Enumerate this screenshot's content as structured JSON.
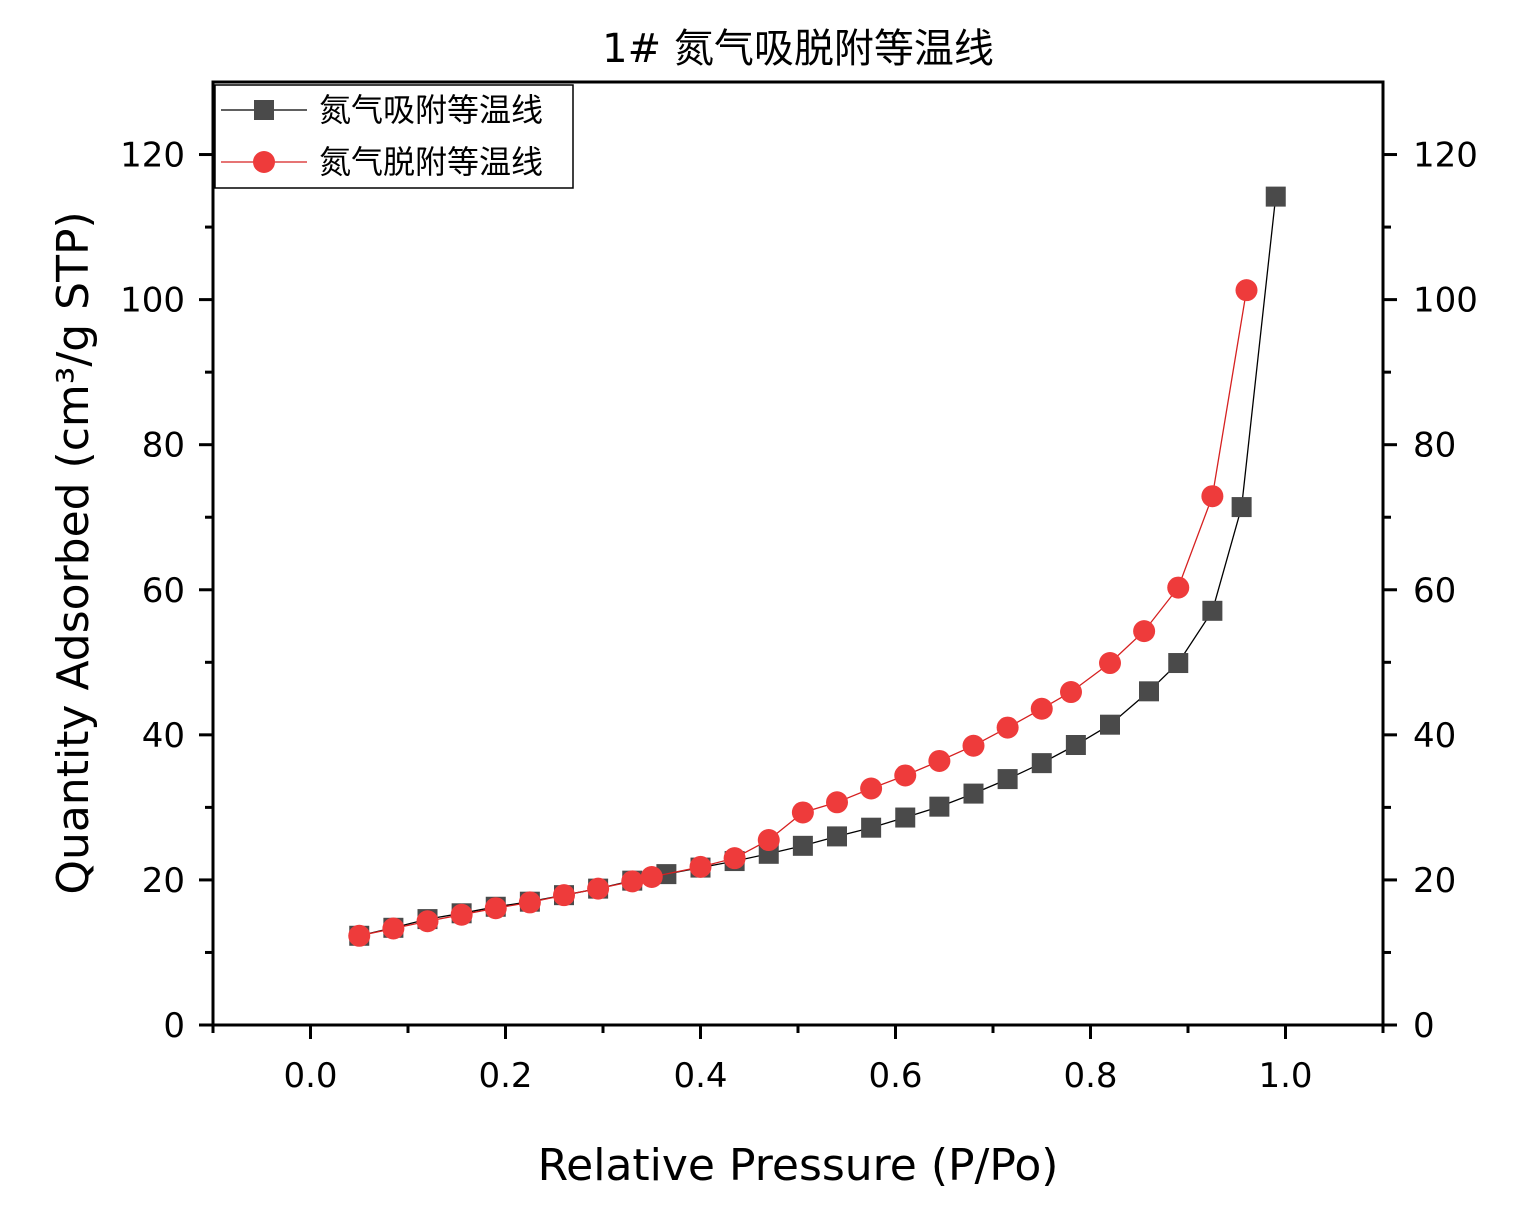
{
  "chart_data": {
    "type": "scatter",
    "title": "1# 氮气吸脱附等温线",
    "xlabel": "Relative Pressure (P/Po)",
    "ylabel": "Quantity Adsorbed (cm³/g STP)",
    "xlim": [
      -0.1,
      1.1
    ],
    "ylim": [
      0,
      130
    ],
    "x_ticks": [
      "0.0",
      "0.2",
      "0.4",
      "0.6",
      "0.8",
      "1.0"
    ],
    "y_ticks": [
      "0",
      "20",
      "40",
      "60",
      "80",
      "100",
      "120"
    ],
    "legend_position": "top-left",
    "grid": false,
    "mirror_right_axis": true,
    "series": [
      {
        "name": "氮气吸附等温线",
        "color": "#4a4a4a",
        "line_color": "#000000",
        "marker": "square",
        "x": [
          0.05,
          0.085,
          0.12,
          0.155,
          0.19,
          0.225,
          0.26,
          0.295,
          0.33,
          0.365,
          0.4,
          0.435,
          0.47,
          0.505,
          0.54,
          0.575,
          0.61,
          0.645,
          0.68,
          0.715,
          0.75,
          0.785,
          0.82,
          0.86,
          0.89,
          0.925,
          0.955,
          0.99
        ],
        "y": [
          12.3,
          13.4,
          14.6,
          15.4,
          16.3,
          17.0,
          17.9,
          18.8,
          19.9,
          20.8,
          21.7,
          22.6,
          23.6,
          24.7,
          26.0,
          27.2,
          28.6,
          30.1,
          31.9,
          33.9,
          36.1,
          38.6,
          41.4,
          46.0,
          49.9,
          57.1,
          71.4,
          114.2
        ]
      },
      {
        "name": "氮气脱附等温线",
        "color": "#ee3b3b",
        "line_color": "#d62020",
        "marker": "circle",
        "x": [
          0.05,
          0.085,
          0.12,
          0.155,
          0.19,
          0.225,
          0.26,
          0.295,
          0.33,
          0.35,
          0.4,
          0.435,
          0.47,
          0.505,
          0.54,
          0.575,
          0.61,
          0.645,
          0.68,
          0.715,
          0.75,
          0.78,
          0.82,
          0.855,
          0.89,
          0.925,
          0.96
        ],
        "y": [
          12.3,
          13.3,
          14.3,
          15.2,
          16.1,
          16.9,
          17.9,
          18.8,
          19.8,
          20.4,
          21.8,
          23.0,
          25.5,
          29.3,
          30.7,
          32.6,
          34.4,
          36.4,
          38.5,
          41.0,
          43.6,
          45.9,
          49.9,
          54.3,
          60.3,
          72.9,
          101.3
        ]
      }
    ]
  }
}
